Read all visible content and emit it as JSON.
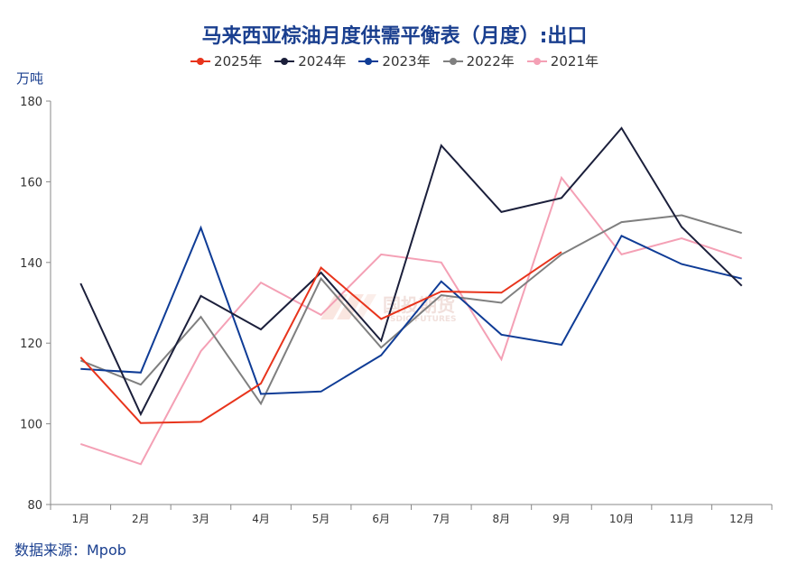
{
  "chart_data": {
    "type": "line",
    "title": "马来西亚棕油月度供需平衡表（月度）:出口",
    "ylabel": "万吨",
    "xlabel": "",
    "categories": [
      "1月",
      "2月",
      "3月",
      "4月",
      "5月",
      "6月",
      "7月",
      "8月",
      "9月",
      "10月",
      "11月",
      "12月"
    ],
    "yticks": [
      "180",
      "160",
      "140",
      "120",
      "100",
      "80"
    ],
    "ylim": [
      80,
      180
    ],
    "grid": false,
    "legend_position": "top",
    "series": [
      {
        "name": "2025年",
        "color": "#e8341c",
        "values": [
          116.5,
          100.2,
          100.5,
          110,
          138.7,
          126,
          132.8,
          132.5,
          142.6,
          null,
          null,
          null
        ]
      },
      {
        "name": "2024年",
        "color": "#1b1f3b",
        "values": [
          134.8,
          102.4,
          131.7,
          123.4,
          137.5,
          120.6,
          169,
          152.5,
          156,
          173.3,
          148.8,
          134.2
        ]
      },
      {
        "name": "2023年",
        "color": "#0f3c96",
        "values": [
          113.6,
          112.7,
          148.6,
          107.4,
          108,
          117,
          135.3,
          122.1,
          119.6,
          146.6,
          139.6,
          136
        ]
      },
      {
        "name": "2022年",
        "color": "#7f7f7f",
        "values": [
          115.7,
          109.7,
          126.5,
          105,
          136,
          118.9,
          131.9,
          130,
          142,
          150,
          151.7,
          147.3
        ]
      },
      {
        "name": "2021年",
        "color": "#f4a0b5",
        "values": [
          95,
          90,
          118,
          135,
          127,
          142,
          140,
          116,
          161,
          142,
          146,
          141
        ]
      }
    ]
  },
  "watermark_text": "国投期货 SDIC FUTURES",
  "source_text": "数据来源：Mpob"
}
